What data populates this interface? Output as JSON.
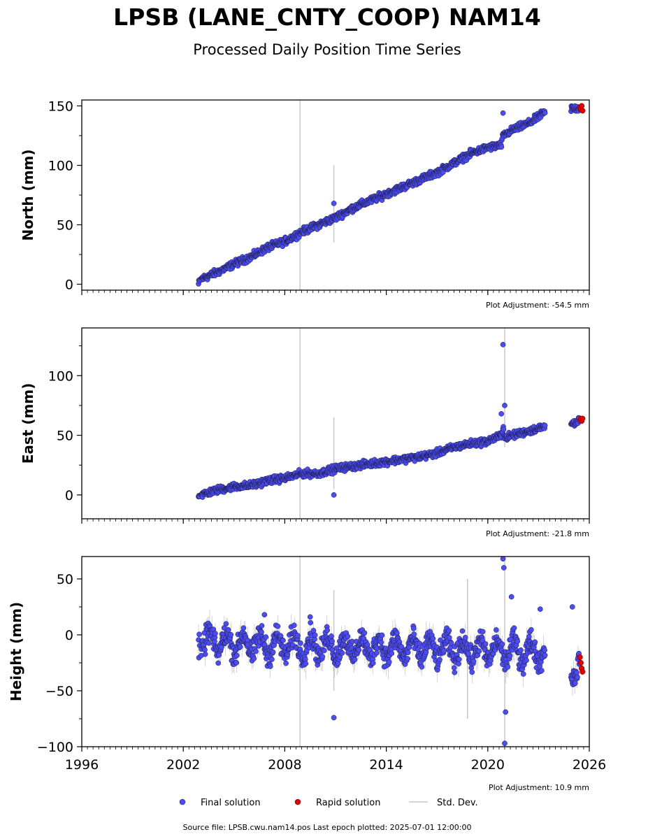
{
  "chart_data": {
    "type": "scatter",
    "title": "LPSB (LANE_CNTY_COOP) NAM14",
    "subtitle": "Processed Daily Position Time Series",
    "x_ticks": [
      1996,
      2002,
      2008,
      2014,
      2020,
      2026
    ],
    "xlim": [
      1996,
      2026
    ],
    "legend": {
      "placement": "bottom-center",
      "final": "Final solution",
      "rapid": "Rapid solution",
      "std": "Std. Dev."
    },
    "footer": "Source file: LPSB.cwu.nam14.pos  Last epoch plotted: 2025-07-01 12:00:00",
    "colors": {
      "final": "#4c4cf2",
      "rapid": "#e60000",
      "std": "#c8c8c8"
    },
    "panels": [
      {
        "ylabel": "North (mm)",
        "adjustment": "Plot Adjustment: -54.5 mm",
        "ylim": [
          -5,
          155
        ],
        "y_ticks": [
          0,
          50,
          100,
          150
        ],
        "trend": [
          [
            2002.9,
            0
          ],
          [
            2003.0,
            4
          ],
          [
            2004.0,
            10
          ],
          [
            2005.0,
            17
          ],
          [
            2006.0,
            23
          ],
          [
            2007.0,
            31
          ],
          [
            2008.0,
            36
          ],
          [
            2009.0,
            44
          ],
          [
            2010.0,
            50
          ],
          [
            2011.0,
            56
          ],
          [
            2012.0,
            64
          ],
          [
            2013.0,
            70
          ],
          [
            2014.0,
            76
          ],
          [
            2015.0,
            82
          ],
          [
            2016.0,
            88
          ],
          [
            2017.0,
            94
          ],
          [
            2018.0,
            102
          ],
          [
            2019.0,
            110
          ],
          [
            2020.0,
            115
          ],
          [
            2020.8,
            117
          ],
          [
            2020.9,
            125
          ],
          [
            2021.5,
            130
          ],
          [
            2022.5,
            136
          ],
          [
            2023.3,
            144
          ],
          [
            2025.0,
            148
          ],
          [
            2025.5,
            148
          ]
        ],
        "noise": 2.5,
        "gaps": [
          [
            2023.4,
            2024.9
          ]
        ],
        "outliers": [
          [
            2010.9,
            68
          ],
          [
            2020.9,
            144
          ]
        ],
        "rapid": [
          [
            2025.45,
            149
          ],
          [
            2025.5,
            147
          ],
          [
            2025.55,
            150
          ],
          [
            2025.6,
            146
          ]
        ],
        "std_spikes": [
          [
            2008.9,
            -5,
            155
          ],
          [
            2010.9,
            35,
            100
          ]
        ]
      },
      {
        "ylabel": "East (mm)",
        "adjustment": "Plot Adjustment: -21.8 mm",
        "ylim": [
          -20,
          140
        ],
        "y_ticks": [
          0,
          50,
          100
        ],
        "trend": [
          [
            2002.9,
            0
          ],
          [
            2003.0,
            0
          ],
          [
            2004.0,
            4
          ],
          [
            2005.0,
            7
          ],
          [
            2006.0,
            8
          ],
          [
            2007.0,
            12
          ],
          [
            2008.0,
            14
          ],
          [
            2009.0,
            18
          ],
          [
            2010.0,
            18
          ],
          [
            2011.0,
            22
          ],
          [
            2012.0,
            24
          ],
          [
            2013.0,
            26
          ],
          [
            2014.0,
            28
          ],
          [
            2015.0,
            30
          ],
          [
            2016.0,
            32
          ],
          [
            2017.0,
            35
          ],
          [
            2018.0,
            40
          ],
          [
            2019.0,
            43
          ],
          [
            2020.0,
            45
          ],
          [
            2020.8,
            50
          ],
          [
            2020.9,
            58
          ],
          [
            2021.0,
            48
          ],
          [
            2022.0,
            52
          ],
          [
            2023.3,
            57
          ],
          [
            2025.0,
            60
          ],
          [
            2025.5,
            63
          ]
        ],
        "noise": 2.5,
        "gaps": [
          [
            2023.4,
            2024.9
          ]
        ],
        "outliers": [
          [
            2010.9,
            0
          ],
          [
            2020.9,
            126
          ],
          [
            2021.0,
            75
          ],
          [
            2020.8,
            68
          ]
        ],
        "rapid": [
          [
            2025.45,
            63
          ],
          [
            2025.5,
            64
          ],
          [
            2025.55,
            62
          ],
          [
            2025.6,
            64
          ]
        ],
        "std_spikes": [
          [
            2008.9,
            -20,
            140
          ],
          [
            2010.9,
            5,
            65
          ],
          [
            2021.0,
            40,
            140
          ]
        ]
      },
      {
        "ylabel": "Height (mm)",
        "adjustment": "Plot Adjustment: 10.9 mm",
        "ylim": [
          -100,
          70
        ],
        "y_ticks": [
          -100,
          -50,
          0,
          50
        ],
        "trend": [
          [
            2002.9,
            -5
          ],
          [
            2005.0,
            -8
          ],
          [
            2010.0,
            -10
          ],
          [
            2015.0,
            -12
          ],
          [
            2020.0,
            -14
          ],
          [
            2023.3,
            -15
          ],
          [
            2025.0,
            -30
          ],
          [
            2025.5,
            -28
          ]
        ],
        "noise": 9,
        "seasonal": 9,
        "gaps": [
          [
            2023.4,
            2024.9
          ]
        ],
        "outliers": [
          [
            2010.9,
            -74
          ],
          [
            2020.9,
            68
          ],
          [
            2020.95,
            60
          ],
          [
            2021.05,
            -69
          ],
          [
            2021.0,
            -97
          ],
          [
            2021.4,
            34
          ],
          [
            2023.1,
            23
          ],
          [
            2025.0,
            25
          ],
          [
            2006.8,
            18
          ],
          [
            2009.5,
            16
          ]
        ],
        "rapid": [
          [
            2025.45,
            -20
          ],
          [
            2025.5,
            -25
          ],
          [
            2025.55,
            -30
          ],
          [
            2025.6,
            -33
          ]
        ],
        "std_spikes": [
          [
            2008.9,
            -100,
            70
          ],
          [
            2010.9,
            -50,
            40
          ],
          [
            2018.8,
            -75,
            50
          ],
          [
            2021.0,
            -100,
            70
          ]
        ]
      }
    ]
  }
}
